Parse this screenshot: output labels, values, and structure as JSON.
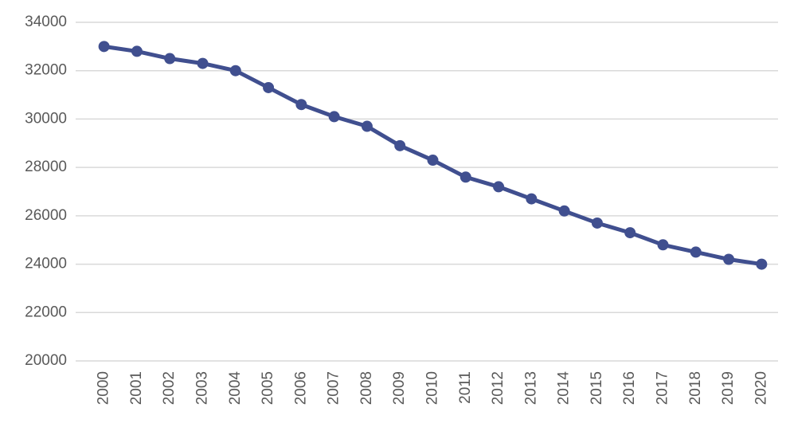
{
  "chart_data": {
    "type": "line",
    "categories": [
      "2000",
      "2001",
      "2002",
      "2003",
      "2004",
      "2005",
      "2006",
      "2007",
      "2008",
      "2009",
      "2010",
      "2011",
      "2012",
      "2013",
      "2014",
      "2015",
      "2016",
      "2017",
      "2018",
      "2019",
      "2020"
    ],
    "series": [
      {
        "color": "#404f8f",
        "values": [
          33000,
          32800,
          32500,
          32300,
          32000,
          31300,
          30600,
          30100,
          29700,
          28900,
          28300,
          27600,
          27200,
          26700,
          26200,
          25700,
          25300,
          24800,
          24500,
          24200,
          24000
        ]
      }
    ],
    "ylim": [
      20000,
      34000
    ],
    "yticks": [
      20000,
      22000,
      24000,
      26000,
      28000,
      30000,
      32000,
      34000
    ],
    "grid": true
  }
}
